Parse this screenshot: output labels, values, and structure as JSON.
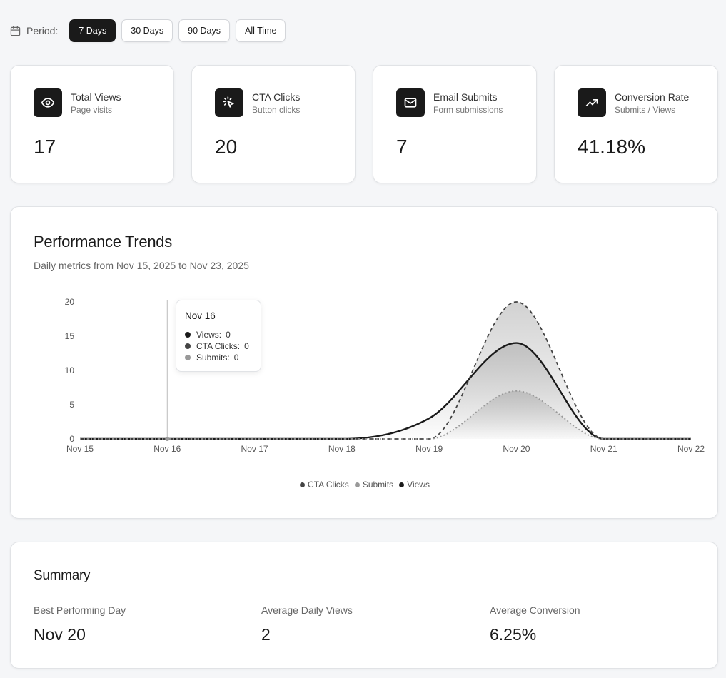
{
  "period": {
    "label": "Period:",
    "options": [
      {
        "label": "7 Days",
        "active": true
      },
      {
        "label": "30 Days",
        "active": false
      },
      {
        "label": "90 Days",
        "active": false
      },
      {
        "label": "All Time",
        "active": false
      }
    ]
  },
  "stats": [
    {
      "title": "Total Views",
      "subtitle": "Page visits",
      "value": "17",
      "icon": "eye-icon"
    },
    {
      "title": "CTA Clicks",
      "subtitle": "Button clicks",
      "value": "20",
      "icon": "pointer-click-icon"
    },
    {
      "title": "Email Submits",
      "subtitle": "Form submissions",
      "value": "7",
      "icon": "mail-icon"
    },
    {
      "title": "Conversion Rate",
      "subtitle": "Submits / Views",
      "value": "41.18%",
      "icon": "trending-up-icon"
    }
  ],
  "trends": {
    "title": "Performance Trends",
    "subtitle": "Daily metrics from Nov 15, 2025 to Nov 23, 2025"
  },
  "chart_data": {
    "type": "area",
    "categories": [
      "Nov 15",
      "Nov 16",
      "Nov 17",
      "Nov 18",
      "Nov 19",
      "Nov 20",
      "Nov 21",
      "Nov 22"
    ],
    "series": [
      {
        "name": "Views",
        "values": [
          0,
          0,
          0,
          0,
          3,
          14,
          0,
          0
        ],
        "color": "#1a1a1a",
        "style": "solid"
      },
      {
        "name": "CTA Clicks",
        "values": [
          0,
          0,
          0,
          0,
          0,
          20,
          0,
          0
        ],
        "color": "#444444",
        "style": "dashed"
      },
      {
        "name": "Submits",
        "values": [
          0,
          0,
          0,
          0,
          0,
          7,
          0,
          0
        ],
        "color": "#999999",
        "style": "dotted"
      }
    ],
    "yticks": [
      0,
      5,
      10,
      15,
      20
    ],
    "ylim": [
      0,
      20
    ],
    "legend": {
      "placement": "bottom-center",
      "order": [
        "CTA Clicks",
        "Submits",
        "Views"
      ]
    },
    "grid": false
  },
  "tooltip": {
    "date": "Nov 16",
    "rows": [
      {
        "label": "Views:",
        "value": "0",
        "color": "#1a1a1a"
      },
      {
        "label": "CTA Clicks:",
        "value": "0",
        "color": "#444444"
      },
      {
        "label": "Submits:",
        "value": "0",
        "color": "#999999"
      }
    ]
  },
  "legend": [
    {
      "label": "CTA Clicks",
      "color": "#444444"
    },
    {
      "label": "Submits",
      "color": "#999999"
    },
    {
      "label": "Views",
      "color": "#1a1a1a"
    }
  ],
  "summary": {
    "title": "Summary",
    "items": [
      {
        "label": "Best Performing Day",
        "value": "Nov 20"
      },
      {
        "label": "Average Daily Views",
        "value": "2"
      },
      {
        "label": "Average Conversion",
        "value": "6.25%"
      }
    ]
  }
}
